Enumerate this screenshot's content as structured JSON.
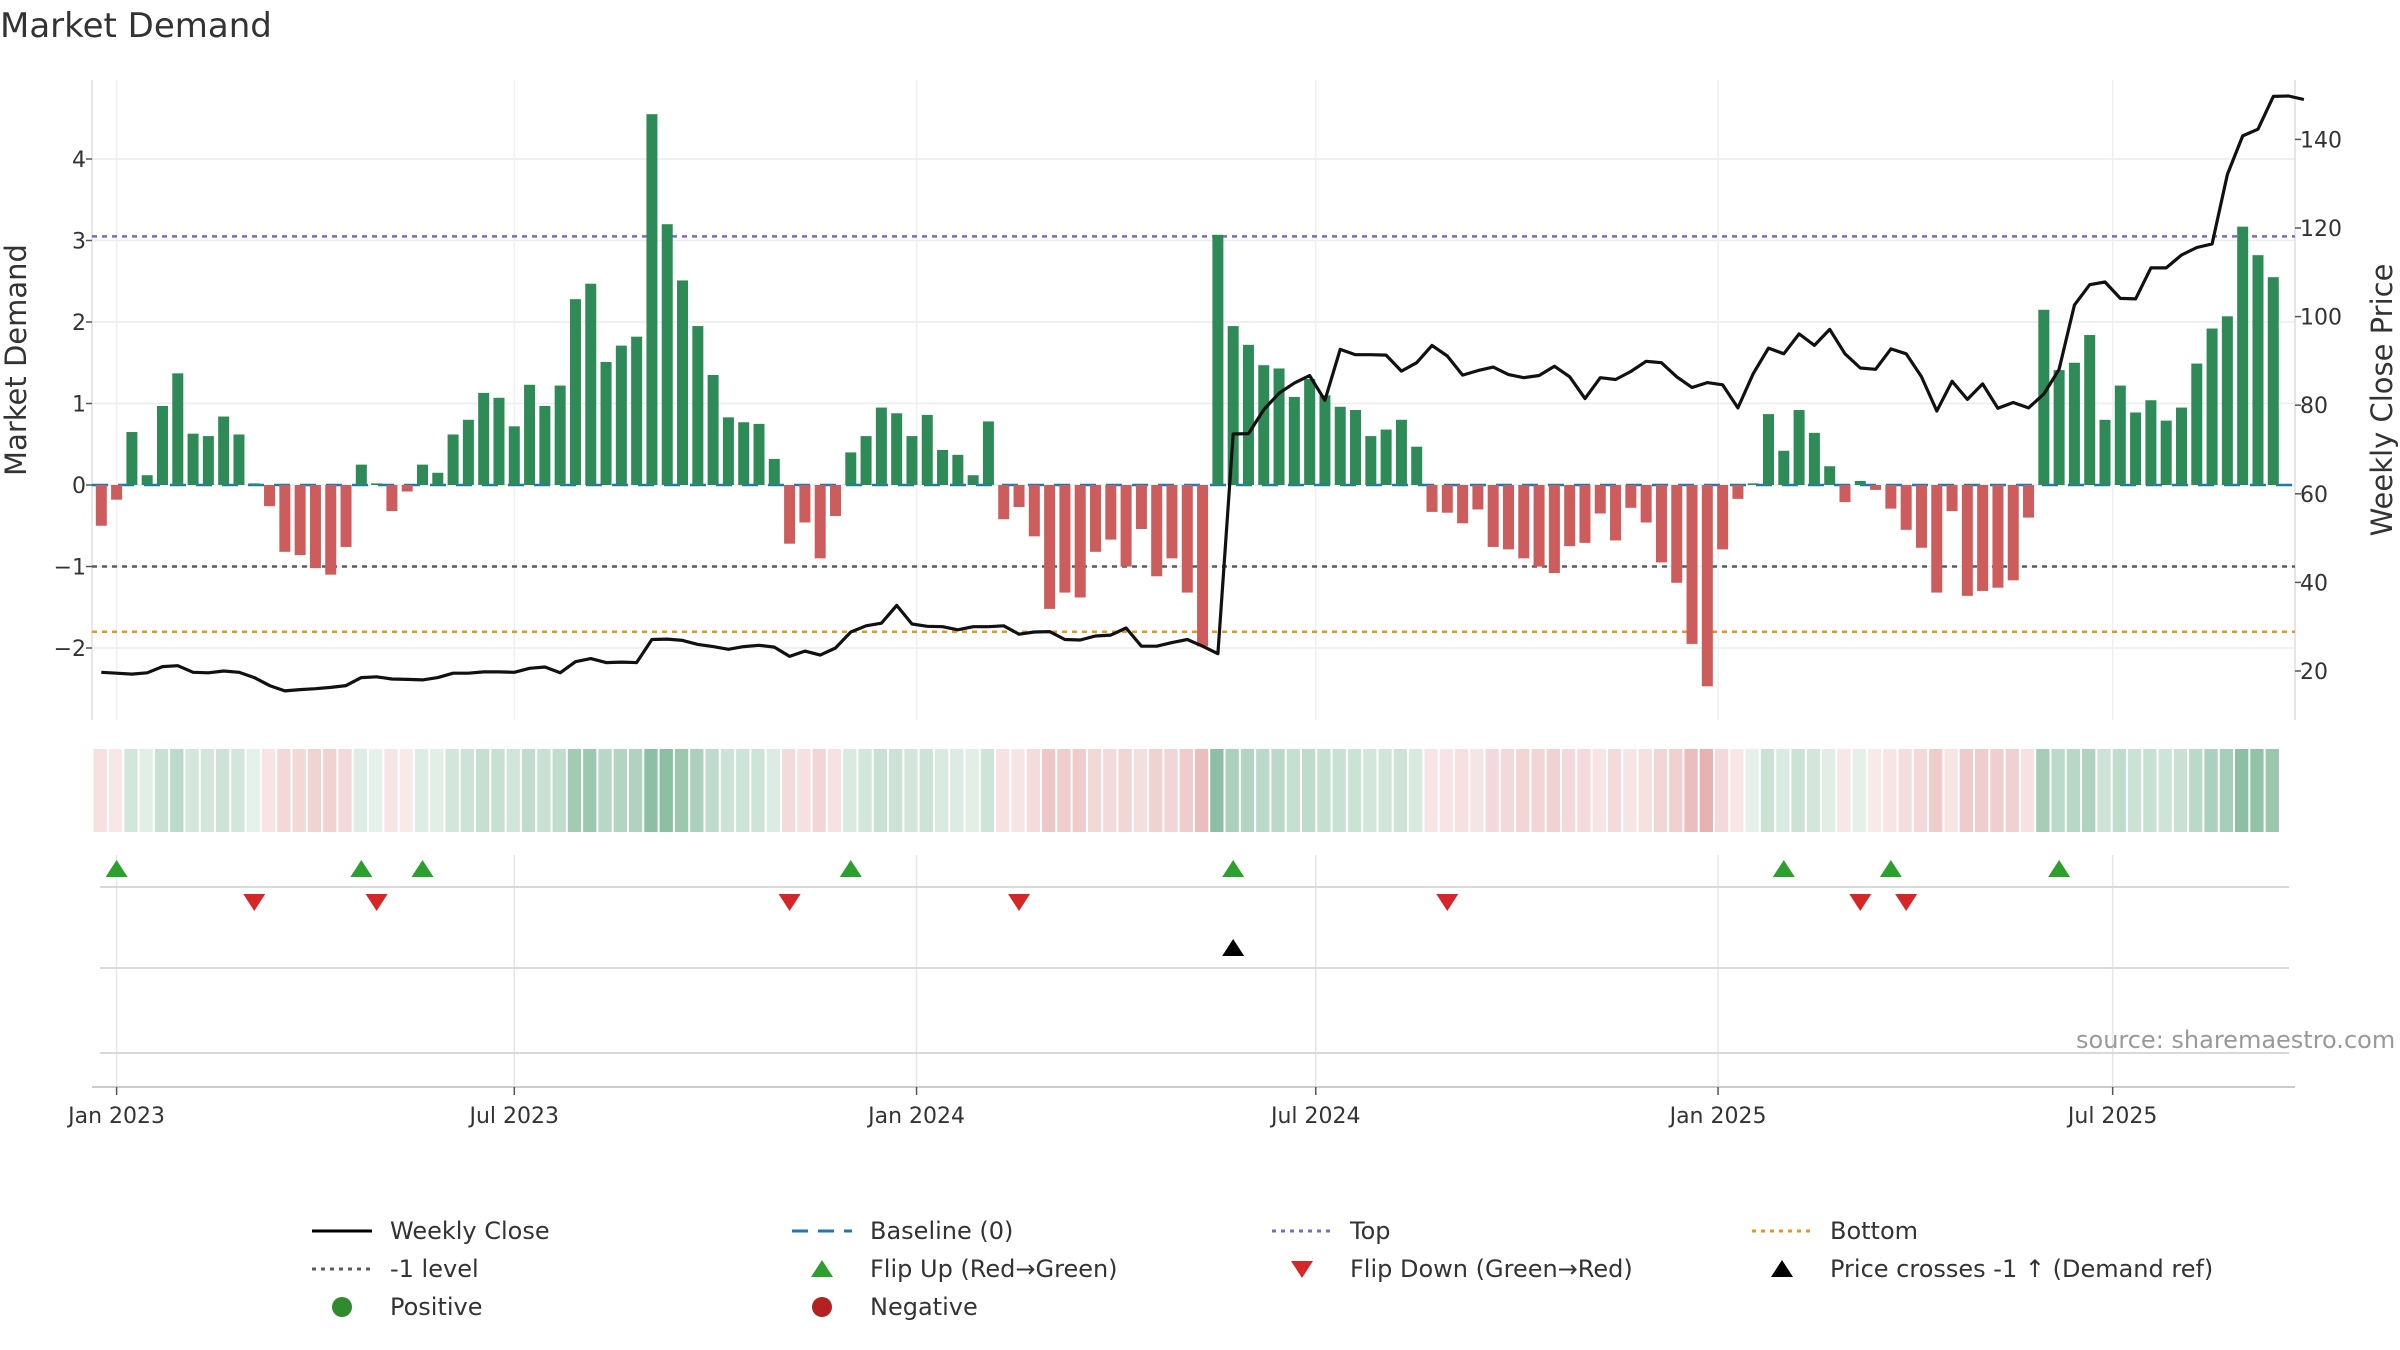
{
  "chart_data": {
    "type": "bar+line",
    "title": "Market Demand",
    "ylabel_left": "Market Demand",
    "ylabel_right": "Weekly Close Price",
    "source": "source: sharemaestro.com",
    "ylim_left": [
      -2.9,
      5.0
    ],
    "ylim_right": [
      9.5,
      148.5
    ],
    "yticks_left": [
      -2,
      -1,
      0,
      1,
      2,
      3,
      4
    ],
    "ytick_labels_left": [
      "−2",
      "−1",
      "0",
      "1",
      "2",
      "3",
      "4"
    ],
    "yticks_right": [
      20,
      40,
      60,
      80,
      100,
      120,
      140
    ],
    "reference_lines": {
      "top": 3.05,
      "minus_one": -1.0,
      "bottom": -1.8,
      "baseline": 0
    },
    "x_ticks": [
      {
        "label": "Jan 2023",
        "index": 1
      },
      {
        "label": "Jul 2023",
        "index": 27
      },
      {
        "label": "Jan 2024",
        "index": 53.3
      },
      {
        "label": "Jul 2024",
        "index": 79.4
      },
      {
        "label": "Jan 2025",
        "index": 105.7
      },
      {
        "label": "Jul 2025",
        "index": 131.5
      }
    ],
    "demand": [
      -0.5,
      -0.18,
      0.65,
      0.12,
      0.97,
      1.37,
      0.63,
      0.6,
      0.84,
      0.62,
      0.02,
      -0.26,
      -0.82,
      -0.86,
      -1.02,
      -1.1,
      -0.76,
      0.25,
      0.02,
      -0.32,
      -0.08,
      0.25,
      0.15,
      0.62,
      0.8,
      1.13,
      1.07,
      0.72,
      1.23,
      0.97,
      1.22,
      2.28,
      2.47,
      1.51,
      1.71,
      1.82,
      4.55,
      3.2,
      2.51,
      1.95,
      1.35,
      0.83,
      0.77,
      0.75,
      0.32,
      -0.72,
      -0.46,
      -0.9,
      -0.38,
      0.4,
      0.6,
      0.95,
      0.88,
      0.6,
      0.86,
      0.43,
      0.37,
      0.12,
      0.78,
      -0.42,
      -0.27,
      -0.63,
      -1.52,
      -1.32,
      -1.38,
      -0.82,
      -0.67,
      -1.0,
      -0.54,
      -1.12,
      -0.9,
      -1.32,
      -1.98,
      3.07,
      1.95,
      1.72,
      1.47,
      1.43,
      1.08,
      1.3,
      1.1,
      0.96,
      0.92,
      0.6,
      0.68,
      0.8,
      0.47,
      -0.33,
      -0.34,
      -0.47,
      -0.3,
      -0.76,
      -0.79,
      -0.9,
      -1.0,
      -1.08,
      -0.75,
      -0.71,
      -0.35,
      -0.68,
      -0.28,
      -0.46,
      -0.95,
      -1.2,
      -1.95,
      -2.47,
      -0.79,
      -0.17,
      0.02,
      0.87,
      0.42,
      0.92,
      0.64,
      0.23,
      -0.21,
      0.05,
      -0.06,
      -0.29,
      -0.55,
      -0.77,
      -1.32,
      -0.32,
      -1.36,
      -1.3,
      -1.26,
      -1.17,
      -0.4,
      2.15,
      1.41,
      1.5,
      1.84,
      0.8,
      1.22,
      0.89,
      1.04,
      0.79,
      0.95,
      1.49,
      1.92,
      2.07,
      3.17,
      2.82,
      2.55
    ],
    "weekly_close": [
      19.7,
      19.5,
      19.3,
      19.6,
      21.0,
      21.2,
      19.7,
      19.6,
      20.0,
      19.7,
      18.5,
      16.7,
      15.5,
      15.8,
      16.0,
      16.3,
      16.7,
      18.5,
      18.7,
      18.2,
      18.1,
      18.0,
      18.5,
      19.5,
      19.5,
      19.8,
      19.8,
      19.7,
      20.6,
      20.9,
      19.6,
      22.1,
      22.8,
      21.9,
      22.0,
      21.9,
      27.1,
      27.2,
      26.9,
      26.0,
      25.5,
      24.9,
      25.5,
      25.8,
      25.4,
      23.3,
      24.5,
      23.6,
      25.2,
      28.8,
      30.2,
      30.8,
      34.8,
      30.6,
      30.1,
      30.0,
      29.3,
      30.0,
      30.0,
      30.2,
      28.3,
      28.8,
      28.9,
      27.1,
      27.0,
      27.9,
      28.1,
      29.7,
      25.6,
      25.6,
      26.4,
      27.1,
      25.6,
      23.9,
      73.5,
      73.6,
      79.0,
      82.7,
      85.0,
      86.7,
      81.1,
      92.6,
      91.4,
      91.4,
      91.3,
      87.7,
      89.6,
      93.5,
      91.1,
      86.8,
      87.8,
      88.6,
      86.9,
      86.2,
      86.7,
      88.8,
      86.4,
      81.5,
      86.2,
      85.8,
      87.6,
      89.9,
      89.6,
      86.4,
      84.0,
      85.1,
      84.6,
      79.4,
      87.1,
      92.9,
      91.6,
      96.1,
      93.5,
      97.1,
      91.6,
      88.4,
      88.1,
      92.7,
      91.6,
      86.4,
      78.7,
      85.4,
      81.3,
      84.8,
      79.3,
      80.6,
      79.4,
      82.5,
      88.1,
      102.6,
      107.2,
      107.8,
      104.1,
      104.0,
      111.0,
      111.0,
      113.9,
      115.6,
      116.4,
      132.1,
      140.8,
      142.3,
      149.7,
      149.8,
      149.0
    ],
    "flip_up_index": [
      1,
      17,
      21,
      49,
      74,
      110,
      117,
      128
    ],
    "flip_down_index": [
      10,
      18,
      45,
      60,
      88,
      115,
      118
    ],
    "price_cross_index": [
      74
    ]
  },
  "legend": [
    {
      "label": "Weekly Close",
      "icon": "solid-black-line"
    },
    {
      "label": "Baseline (0)",
      "icon": "dashed-blue-line",
      "color": "#1f77b4"
    },
    {
      "label": "Top",
      "icon": "dotted-purple-line",
      "color": "#7b68c8"
    },
    {
      "label": "Bottom",
      "icon": "dotted-orange-line",
      "color": "#e8951c"
    },
    {
      "label": "-1 level",
      "icon": "dotted-gray-line",
      "color": "#5a5a66"
    },
    {
      "label": "Flip Up (Red→Green)",
      "icon": "triangle-up-icon",
      "color": "#2ca02c"
    },
    {
      "label": "Flip Down (Green→Red)",
      "icon": "triangle-down-icon",
      "color": "#d62728"
    },
    {
      "label": "Price crosses -1 ↑ (Demand ref)",
      "icon": "triangle-up-icon",
      "color": "#000000"
    },
    {
      "label": "Positive",
      "icon": "circle-icon",
      "color": "#2e8b2e"
    },
    {
      "label": "Negative",
      "icon": "circle-icon",
      "color": "#b22222"
    }
  ],
  "colors": {
    "positive_bar": "#2e8b57",
    "negative_bar": "#cd5c5c",
    "heat_positive": "#2e8b57",
    "heat_negative": "#cd5c5c"
  }
}
